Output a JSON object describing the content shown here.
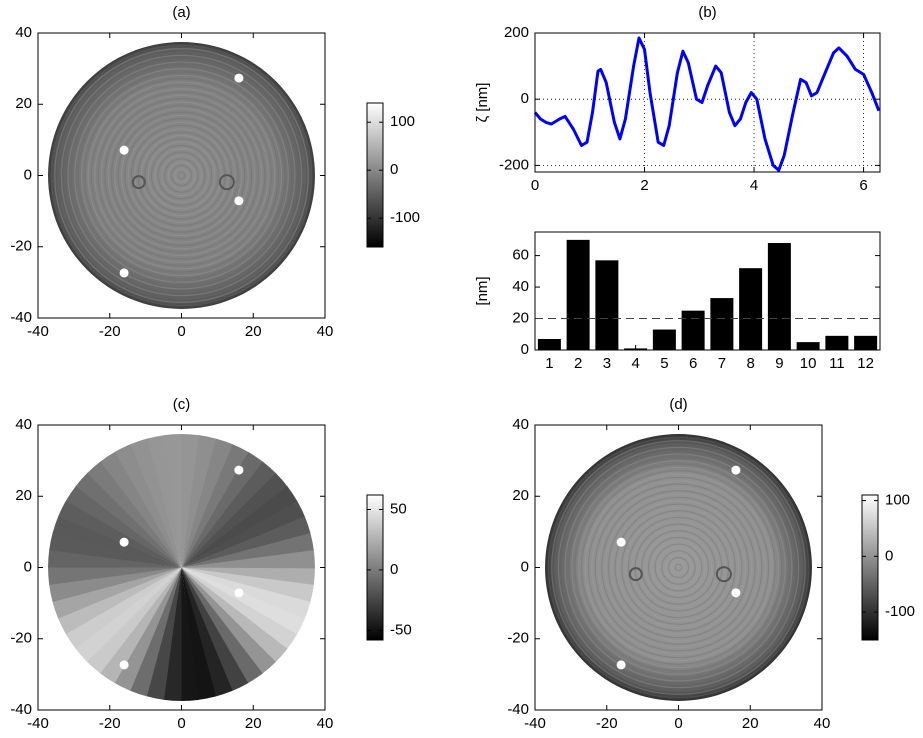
{
  "chart_data": [
    {
      "type": "heatmap",
      "title": "(a)",
      "xlim": [
        -40,
        40
      ],
      "ylim": [
        -40,
        40
      ],
      "xticks": [
        -40,
        -20,
        0,
        20,
        40
      ],
      "yticks": [
        -40,
        -20,
        0,
        20,
        40
      ],
      "colormap": "gray",
      "colorbar": {
        "clim": [
          -160,
          140
        ],
        "ticks": [
          -100,
          0,
          100
        ]
      }
    },
    {
      "type": "line",
      "title": "(b)",
      "ylabel": "ζ [nm]",
      "x": [
        0,
        0.1,
        0.2,
        0.3,
        0.45,
        0.55,
        0.7,
        0.85,
        0.95,
        1.05,
        1.15,
        1.2,
        1.3,
        1.45,
        1.55,
        1.65,
        1.8,
        1.9,
        2.0,
        2.1,
        2.25,
        2.35,
        2.45,
        2.6,
        2.7,
        2.8,
        2.95,
        3.05,
        3.15,
        3.3,
        3.4,
        3.55,
        3.65,
        3.75,
        3.85,
        3.95,
        4.05,
        4.2,
        4.35,
        4.45,
        4.55,
        4.7,
        4.85,
        4.95,
        5.05,
        5.15,
        5.3,
        5.45,
        5.55,
        5.7,
        5.85,
        6.0,
        6.15,
        6.28
      ],
      "series": [
        {
          "color": "#0000ff",
          "values": [
            -40,
            -60,
            -70,
            -75,
            -60,
            -52,
            -90,
            -140,
            -130,
            -40,
            85,
            90,
            50,
            -70,
            -120,
            -60,
            100,
            185,
            150,
            20,
            -130,
            -140,
            -80,
            80,
            145,
            110,
            0,
            -10,
            40,
            100,
            80,
            -40,
            -80,
            -60,
            -10,
            20,
            0,
            -120,
            -200,
            -215,
            -170,
            -50,
            60,
            50,
            10,
            20,
            80,
            140,
            155,
            130,
            90,
            75,
            20,
            -35
          ]
        }
      ],
      "xlim": [
        0,
        6.3
      ],
      "ylim": [
        -220,
        200
      ],
      "xticks": [
        0,
        2,
        4,
        6
      ],
      "yticks": [
        -200,
        0,
        200
      ],
      "grid": true
    },
    {
      "type": "bar",
      "ylabel": "[nm]",
      "categories": [
        "1",
        "2",
        "3",
        "4",
        "5",
        "6",
        "7",
        "8",
        "9",
        "10",
        "11",
        "12"
      ],
      "values": [
        7,
        70,
        57,
        1,
        13,
        25,
        33,
        52,
        68,
        5,
        9,
        9
      ],
      "color": "#000000",
      "ylim": [
        0,
        75
      ],
      "yticks": [
        0,
        20,
        40,
        60
      ],
      "reference_line": 20
    },
    {
      "type": "heatmap",
      "title": "(c)",
      "xlim": [
        -40,
        40
      ],
      "ylim": [
        -40,
        40
      ],
      "xticks": [
        -40,
        -20,
        0,
        20,
        40
      ],
      "yticks": [
        -40,
        -20,
        0,
        20,
        40
      ],
      "colormap": "gray",
      "colorbar": {
        "clim": [
          -58,
          62
        ],
        "ticks": [
          -50,
          0,
          50
        ]
      }
    },
    {
      "type": "heatmap",
      "title": "(d)",
      "xlim": [
        -40,
        40
      ],
      "ylim": [
        -40,
        40
      ],
      "xticks": [
        -40,
        -20,
        0,
        20,
        40
      ],
      "yticks": [
        -40,
        -20,
        0,
        20,
        40
      ],
      "colormap": "gray",
      "colorbar": {
        "clim": [
          -150,
          110
        ],
        "ticks": [
          -100,
          0,
          100
        ]
      }
    }
  ]
}
